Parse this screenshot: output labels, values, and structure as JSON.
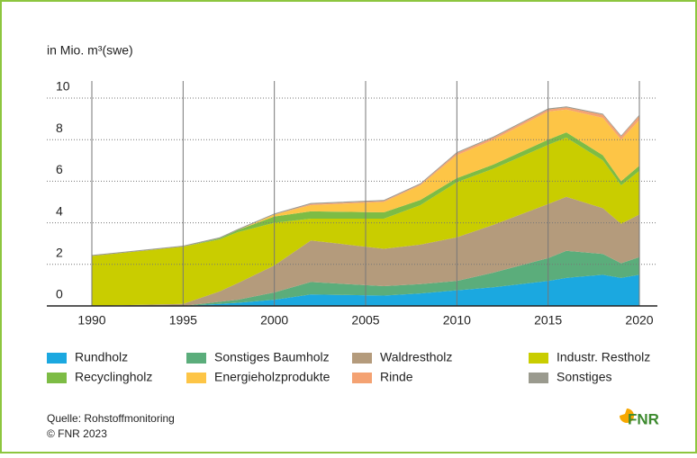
{
  "chart_data": {
    "type": "stacked_area",
    "y_axis_label": "in Mio. m³(swe)",
    "x": [
      1990,
      1995,
      1997,
      1998,
      2000,
      2002,
      2006,
      2008,
      2010,
      2012,
      2015,
      2016,
      2018,
      2019,
      2020
    ],
    "xlim": [
      1990,
      2020
    ],
    "xticks": [
      1990,
      1995,
      2000,
      2005,
      2010,
      2015,
      2020
    ],
    "ylim": [
      0,
      10
    ],
    "yticks": [
      0,
      2,
      4,
      6,
      8,
      10
    ],
    "grid": true,
    "series": [
      {
        "name": "Rundholz",
        "color": "#1ba8e0",
        "values": [
          0,
          0,
          0.1,
          0.15,
          0.3,
          0.55,
          0.5,
          0.6,
          0.75,
          0.9,
          1.2,
          1.35,
          1.5,
          1.35,
          1.5
        ]
      },
      {
        "name": "Sonstiges Baumholz",
        "color": "#5bad7b",
        "values": [
          0,
          0,
          0.1,
          0.15,
          0.35,
          0.6,
          0.45,
          0.45,
          0.45,
          0.7,
          1.1,
          1.3,
          1.0,
          0.7,
          0.85
        ]
      },
      {
        "name": "Waldrestholz",
        "color": "#b49b7c",
        "values": [
          0,
          0.1,
          0.5,
          0.8,
          1.3,
          2.0,
          1.8,
          1.9,
          2.1,
          2.3,
          2.6,
          2.6,
          2.2,
          1.9,
          2.05
        ]
      },
      {
        "name": "Industr. Restholz",
        "color": "#c9cd00",
        "values": [
          2.4,
          2.75,
          2.5,
          2.45,
          2.05,
          1.05,
          1.45,
          1.9,
          2.65,
          2.7,
          2.85,
          2.85,
          2.3,
          1.85,
          2.1
        ]
      },
      {
        "name": "Recyclingholz",
        "color": "#7dbc45",
        "values": [
          0,
          0,
          0.05,
          0.1,
          0.3,
          0.35,
          0.3,
          0.25,
          0.2,
          0.2,
          0.25,
          0.25,
          0.25,
          0.2,
          0.25
        ]
      },
      {
        "name": "Energieholzprodukte",
        "color": "#fdc546",
        "values": [
          0,
          0,
          0,
          0,
          0.1,
          0.3,
          0.5,
          0.7,
          1.1,
          1.2,
          1.35,
          1.1,
          1.8,
          2.0,
          2.2
        ]
      },
      {
        "name": "Rinde",
        "color": "#f4a272",
        "values": [
          0,
          0,
          0,
          0,
          0,
          0.05,
          0.05,
          0.05,
          0.1,
          0.1,
          0.1,
          0.1,
          0.15,
          0.15,
          0.2
        ]
      },
      {
        "name": "Sonstiges",
        "color": "#9a9a8e",
        "values": [
          0.05,
          0.05,
          0.05,
          0.05,
          0.05,
          0.05,
          0.05,
          0.05,
          0.05,
          0.05,
          0.05,
          0.05,
          0.05,
          0.05,
          0.05
        ]
      }
    ],
    "source": "Quelle: Rohstoffmonitoring",
    "copyright": "© FNR 2023",
    "logo": "FNR"
  }
}
